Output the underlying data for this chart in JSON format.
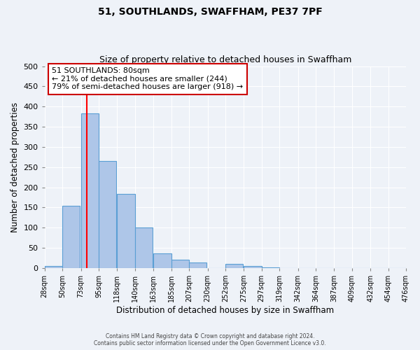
{
  "title": "51, SOUTHLANDS, SWAFFHAM, PE37 7PF",
  "subtitle": "Size of property relative to detached houses in Swaffham",
  "xlabel": "Distribution of detached houses by size in Swaffham",
  "ylabel": "Number of detached properties",
  "bar_left_edges": [
    28,
    50,
    73,
    95,
    118,
    140,
    163,
    185,
    207,
    230,
    252,
    275,
    297,
    319,
    342,
    364,
    387,
    409,
    432,
    454
  ],
  "bar_heights": [
    5,
    155,
    383,
    265,
    184,
    101,
    36,
    21,
    13,
    0,
    10,
    5,
    2,
    0,
    0,
    0,
    0,
    0,
    0,
    0
  ],
  "bin_width": 22,
  "tick_labels": [
    "28sqm",
    "50sqm",
    "73sqm",
    "95sqm",
    "118sqm",
    "140sqm",
    "163sqm",
    "185sqm",
    "207sqm",
    "230sqm",
    "252sqm",
    "275sqm",
    "297sqm",
    "319sqm",
    "342sqm",
    "364sqm",
    "387sqm",
    "409sqm",
    "432sqm",
    "454sqm",
    "476sqm"
  ],
  "tick_positions": [
    28,
    50,
    73,
    95,
    118,
    140,
    163,
    185,
    207,
    230,
    252,
    275,
    297,
    319,
    342,
    364,
    387,
    409,
    432,
    454,
    476
  ],
  "ylim": [
    0,
    500
  ],
  "xlim": [
    28,
    476
  ],
  "yticks": [
    0,
    50,
    100,
    150,
    200,
    250,
    300,
    350,
    400,
    450,
    500
  ],
  "bar_color": "#aec6e8",
  "bar_edge_color": "#5a9fd4",
  "red_line_x": 80,
  "annotation_title": "51 SOUTHLANDS: 80sqm",
  "annotation_line1": "← 21% of detached houses are smaller (244)",
  "annotation_line2": "79% of semi-detached houses are larger (918) →",
  "annotation_box_color": "#ffffff",
  "annotation_box_edge_color": "#cc0000",
  "footer_line1": "Contains HM Land Registry data © Crown copyright and database right 2024.",
  "footer_line2": "Contains public sector information licensed under the Open Government Licence v3.0.",
  "background_color": "#eef2f8",
  "plot_bg_color": "#eef2f8",
  "grid_color": "#ffffff"
}
